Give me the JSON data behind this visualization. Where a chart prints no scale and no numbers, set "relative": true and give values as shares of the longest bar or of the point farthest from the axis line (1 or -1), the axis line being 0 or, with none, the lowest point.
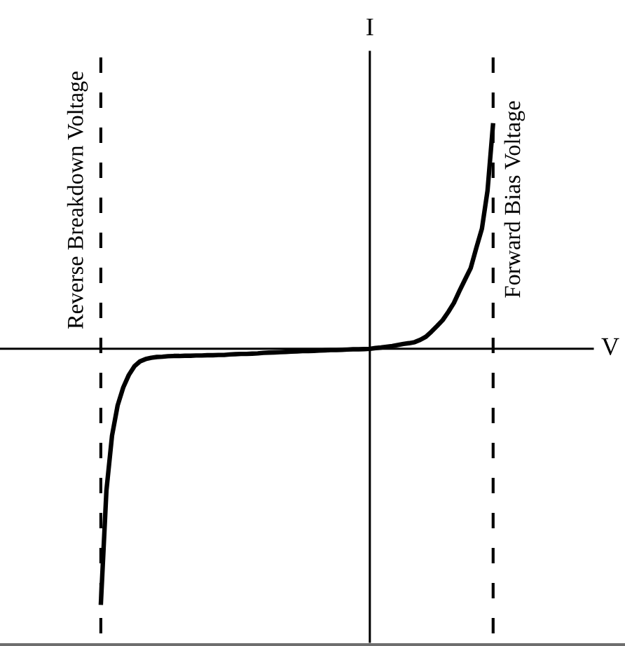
{
  "chart_data": {
    "type": "line",
    "relative": true,
    "xlabel": "V",
    "ylabel": "I",
    "categories": [
      null,
      null,
      null,
      null,
      null,
      null,
      null,
      null,
      null,
      null,
      null,
      null,
      null,
      null,
      null,
      null,
      null,
      null,
      null,
      null,
      null,
      null,
      null,
      null,
      null,
      null,
      null,
      null,
      null,
      null,
      null,
      null,
      null,
      null,
      null,
      null,
      null,
      null,
      null,
      null,
      null,
      null,
      null,
      null,
      null,
      null,
      null,
      null,
      null,
      null,
      null,
      null,
      null,
      null,
      null,
      null,
      null,
      null,
      null,
      null,
      null,
      null,
      null,
      null,
      null,
      null,
      null,
      null,
      null,
      null,
      null
    ],
    "series": [
      {
        "color": "#000000",
        "values": [
          -1.0,
          -0.553,
          -0.339,
          -0.221,
          -0.151,
          -0.102,
          -0.068,
          -0.049,
          -0.04,
          -0.035,
          -0.032,
          -0.031,
          -0.029,
          -0.028,
          -0.028,
          -0.027,
          -0.027,
          -0.026,
          -0.026,
          -0.025,
          -0.025,
          -0.024,
          -0.024,
          -0.022,
          -0.021,
          -0.02,
          -0.02,
          -0.019,
          -0.018,
          -0.016,
          -0.015,
          -0.014,
          -0.013,
          -0.012,
          -0.011,
          -0.01,
          -0.009,
          -0.009,
          -0.008,
          -0.007,
          -0.006,
          -0.005,
          -0.005,
          -0.004,
          -0.003,
          -0.002,
          -0.002,
          -0.001,
          0.0,
          0.003,
          0.005,
          0.008,
          0.011,
          0.015,
          0.019,
          0.022,
          0.026,
          0.035,
          0.047,
          0.067,
          0.089,
          0.112,
          0.144,
          0.179,
          0.226,
          0.271,
          0.315,
          0.394,
          0.469,
          0.617,
          0.881
        ]
      }
    ],
    "annotations": [
      "Reverse Breakdown Voltage",
      "Forward Bias Voltage"
    ],
    "line_style": "solid"
  }
}
